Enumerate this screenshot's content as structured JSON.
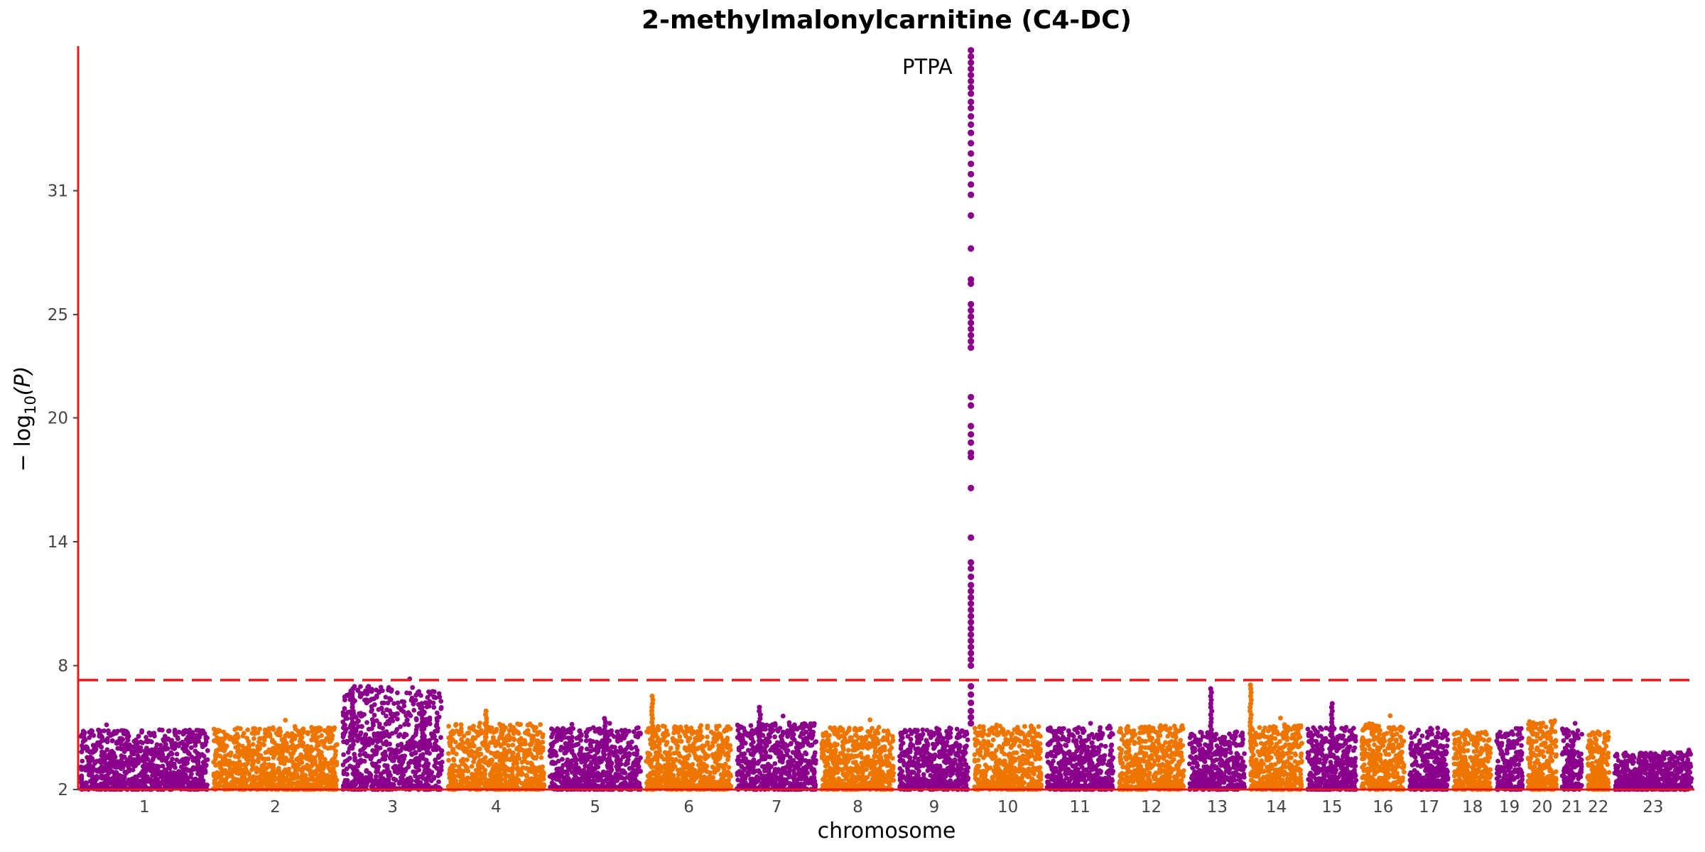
{
  "chart_data": {
    "type": "scatter",
    "title": "2-methylmalonylcarnitine (C4-DC)",
    "xlabel": "chromosome",
    "ylabel_prefix": "− log",
    "ylabel_sub": "10",
    "ylabel_suffix": "(P)",
    "ylim": [
      2,
      38
    ],
    "y_ticks": [
      2,
      8,
      14,
      20,
      25,
      31
    ],
    "significance_threshold": 7.3,
    "colors": {
      "odd": "#8B008B",
      "even": "#EE7600",
      "threshold": "#E41A1C",
      "axis": "#E41A1C"
    },
    "chromosomes": [
      {
        "label": "1",
        "length": 249,
        "max": 4.9,
        "peaks": []
      },
      {
        "label": "2",
        "length": 243,
        "max": 5.0,
        "peaks": []
      },
      {
        "label": "3",
        "length": 198,
        "max": 7.0,
        "peaks": [
          {
            "pos": 0.12,
            "top": 7.0
          },
          {
            "pos": 0.78,
            "top": 6.2
          }
        ]
      },
      {
        "label": "4",
        "length": 191,
        "max": 5.2,
        "peaks": [
          {
            "pos": 0.4,
            "top": 5.8
          }
        ]
      },
      {
        "label": "5",
        "length": 181,
        "max": 5.0,
        "peaks": [
          {
            "pos": 0.6,
            "top": 5.5
          }
        ]
      },
      {
        "label": "6",
        "length": 171,
        "max": 5.1,
        "peaks": [
          {
            "pos": 0.1,
            "top": 6.6
          }
        ]
      },
      {
        "label": "7",
        "length": 159,
        "max": 5.2,
        "peaks": [
          {
            "pos": 0.3,
            "top": 6.0
          }
        ]
      },
      {
        "label": "8",
        "length": 146,
        "max": 5.0,
        "peaks": []
      },
      {
        "label": "9",
        "length": 141,
        "max": 5.0,
        "peaks": []
      },
      {
        "label": "10",
        "length": 136,
        "max": 5.1,
        "peaks": []
      },
      {
        "label": "11",
        "length": 135,
        "max": 5.0,
        "peaks": []
      },
      {
        "label": "12",
        "length": 133,
        "max": 5.1,
        "peaks": []
      },
      {
        "label": "13",
        "length": 115,
        "max": 4.8,
        "peaks": [
          {
            "pos": 0.4,
            "top": 6.9
          }
        ]
      },
      {
        "label": "14",
        "length": 107,
        "max": 5.1,
        "peaks": [
          {
            "pos": 0.05,
            "top": 7.1
          }
        ]
      },
      {
        "label": "15",
        "length": 102,
        "max": 5.0,
        "peaks": [
          {
            "pos": 0.5,
            "top": 6.3
          }
        ]
      },
      {
        "label": "16",
        "length": 90,
        "max": 5.2,
        "peaks": []
      },
      {
        "label": "17",
        "length": 83,
        "max": 5.0,
        "peaks": []
      },
      {
        "label": "18",
        "length": 80,
        "max": 4.8,
        "peaks": []
      },
      {
        "label": "19",
        "length": 59,
        "max": 5.0,
        "peaks": []
      },
      {
        "label": "20",
        "length": 64,
        "max": 5.3,
        "peaks": []
      },
      {
        "label": "21",
        "length": 48,
        "max": 5.0,
        "peaks": []
      },
      {
        "label": "22",
        "length": 51,
        "max": 4.8,
        "peaks": []
      },
      {
        "label": "23",
        "length": 155,
        "max": 3.8,
        "peaks": []
      }
    ],
    "lead_locus": {
      "chromosome": "9",
      "position_fraction": 0.99,
      "gene": "PTPA",
      "top_value": 37.8,
      "values": [
        37.8,
        37.5,
        37.2,
        36.9,
        36.6,
        36.3,
        36.0,
        35.7,
        35.3,
        35.0,
        34.6,
        34.2,
        33.8,
        33.3,
        32.8,
        32.3,
        31.8,
        31.3,
        30.8,
        29.8,
        28.2,
        26.7,
        26.5,
        25.5,
        25.2,
        24.9,
        24.6,
        24.3,
        24.0,
        23.7,
        23.4,
        21.0,
        20.6,
        19.6,
        19.2,
        18.8,
        18.3,
        18.1,
        16.6,
        14.2,
        13.0,
        12.7,
        12.3,
        11.9,
        11.6,
        11.3,
        11.0,
        10.7,
        10.4,
        10.1,
        9.8,
        9.5,
        9.2,
        8.9,
        8.6,
        8.3,
        8.0,
        7.0,
        6.6,
        6.2,
        5.8,
        5.5,
        5.2
      ]
    }
  }
}
